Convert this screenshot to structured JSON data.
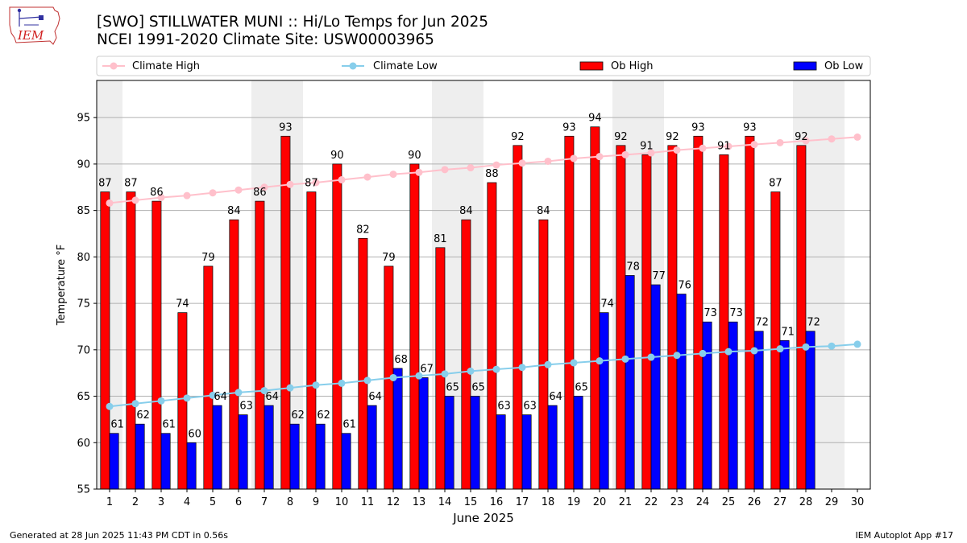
{
  "title_line1": "[SWO] STILLWATER MUNI :: Hi/Lo Temps for Jun 2025",
  "title_line2": "NCEI 1991-2020 Climate Site: USW00003965",
  "logo_text": "IEM",
  "footer_left": "Generated at 28 Jun 2025 11:43 PM CDT in 0.56s",
  "footer_right": "IEM Autoplot App #17",
  "colors": {
    "ob_high": "#ff0000",
    "ob_low": "#0000ff",
    "climate_high": "#ffc0cb",
    "climate_low": "#87ceeb",
    "weekend_band": "#eeeeee",
    "grid": "#b0b0b0"
  },
  "chart_data": {
    "type": "bar",
    "title": "[SWO] STILLWATER MUNI :: Hi/Lo Temps for Jun 2025",
    "xlabel": "June 2025",
    "ylabel": "Temperature °F",
    "ylim": [
      55,
      99
    ],
    "yticks": [
      55,
      60,
      65,
      70,
      75,
      80,
      85,
      90,
      95
    ],
    "grid": true,
    "legend_position": "top",
    "categories": [
      "1",
      "2",
      "3",
      "4",
      "5",
      "6",
      "7",
      "8",
      "9",
      "10",
      "11",
      "12",
      "13",
      "14",
      "15",
      "16",
      "17",
      "18",
      "19",
      "20",
      "21",
      "22",
      "23",
      "24",
      "25",
      "26",
      "27",
      "28",
      "29",
      "30"
    ],
    "weekend_bands": [
      [
        0.5,
        1.5
      ],
      [
        6.5,
        8.5
      ],
      [
        13.5,
        15.5
      ],
      [
        20.5,
        22.5
      ],
      [
        27.5,
        29.5
      ]
    ],
    "series": [
      {
        "name": "Climate High",
        "kind": "line",
        "values": [
          85.8,
          86.1,
          86.4,
          86.6,
          86.9,
          87.2,
          87.5,
          87.8,
          88.0,
          88.3,
          88.6,
          88.9,
          89.1,
          89.4,
          89.6,
          89.9,
          90.1,
          90.3,
          90.6,
          90.8,
          91.0,
          91.2,
          91.5,
          91.7,
          91.9,
          92.1,
          92.3,
          92.5,
          92.7,
          92.9
        ]
      },
      {
        "name": "Climate Low",
        "kind": "line",
        "values": [
          63.9,
          64.2,
          64.5,
          64.8,
          65.1,
          65.4,
          65.6,
          65.9,
          66.2,
          66.4,
          66.7,
          67.0,
          67.2,
          67.4,
          67.7,
          67.9,
          68.1,
          68.4,
          68.6,
          68.8,
          69.0,
          69.2,
          69.4,
          69.6,
          69.8,
          69.9,
          70.1,
          70.3,
          70.4,
          70.6
        ]
      },
      {
        "name": "Ob High",
        "kind": "bar",
        "values": [
          87,
          87,
          86,
          74,
          79,
          84,
          86,
          93,
          87,
          90,
          82,
          79,
          90,
          81,
          84,
          88,
          92,
          84,
          93,
          94,
          92,
          91,
          92,
          93,
          91,
          93,
          87,
          92,
          null,
          null
        ]
      },
      {
        "name": "Ob Low",
        "kind": "bar",
        "values": [
          61,
          62,
          61,
          60,
          64,
          63,
          64,
          62,
          62,
          61,
          64,
          68,
          67,
          65,
          65,
          63,
          63,
          64,
          65,
          74,
          78,
          77,
          76,
          73,
          73,
          72,
          71,
          72,
          null,
          null
        ]
      }
    ]
  }
}
